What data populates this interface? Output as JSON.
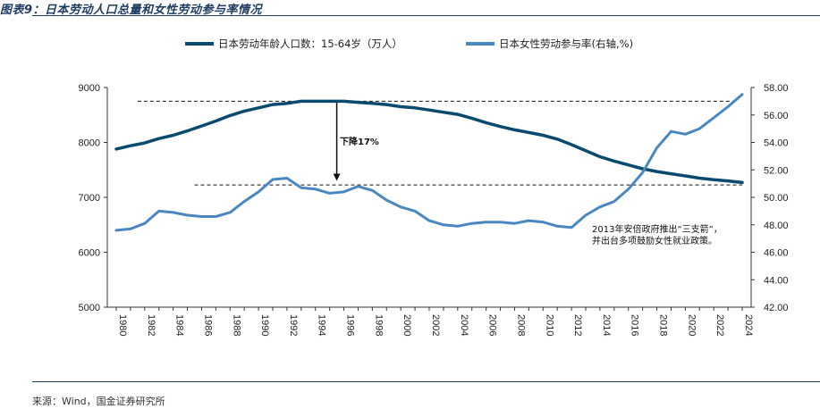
{
  "header": {
    "title": "图表9：日本劳动人口总量和女性劳动参与率情况"
  },
  "footer": {
    "source": "来源：Wind，国金证券研究所"
  },
  "chart_data": {
    "type": "line",
    "x": [
      1980,
      1981,
      1982,
      1983,
      1984,
      1985,
      1986,
      1987,
      1988,
      1989,
      1990,
      1991,
      1992,
      1993,
      1994,
      1995,
      1996,
      1997,
      1998,
      1999,
      2000,
      2001,
      2002,
      2003,
      2004,
      2005,
      2006,
      2007,
      2008,
      2009,
      2010,
      2011,
      2012,
      2013,
      2014,
      2015,
      2016,
      2017,
      2018,
      2019,
      2020,
      2021,
      2022,
      2023,
      2024
    ],
    "xticks": [
      "1980",
      "1982",
      "1984",
      "1986",
      "1988",
      "1990",
      "1992",
      "1994",
      "1996",
      "1998",
      "2000",
      "2002",
      "2004",
      "2006",
      "2008",
      "2010",
      "2012",
      "2014",
      "2016",
      "2018",
      "2020",
      "2022",
      "2024"
    ],
    "series": [
      {
        "name": "日本劳动年龄人口数：15-64岁（万人）",
        "axis": "left",
        "color": "#0b4a6f",
        "values": [
          7880,
          7940,
          7990,
          8070,
          8130,
          8210,
          8300,
          8390,
          8490,
          8570,
          8630,
          8690,
          8710,
          8750,
          8750,
          8750,
          8750,
          8730,
          8710,
          8690,
          8650,
          8630,
          8590,
          8550,
          8510,
          8440,
          8360,
          8290,
          8230,
          8180,
          8130,
          8060,
          7960,
          7850,
          7740,
          7660,
          7590,
          7520,
          7470,
          7430,
          7390,
          7350,
          7320,
          7300,
          7270
        ]
      },
      {
        "name": "日本女性劳动参与率(右轴,%)",
        "axis": "right",
        "color": "#4a87c0",
        "values": [
          47.6,
          47.7,
          48.1,
          49.0,
          48.9,
          48.7,
          48.6,
          48.6,
          48.9,
          49.7,
          50.4,
          51.3,
          51.4,
          50.7,
          50.6,
          50.3,
          50.4,
          50.8,
          50.5,
          49.8,
          49.3,
          49.0,
          48.3,
          48.0,
          47.9,
          48.1,
          48.2,
          48.2,
          48.1,
          48.3,
          48.2,
          47.9,
          47.8,
          48.7,
          49.3,
          49.7,
          50.6,
          51.8,
          53.6,
          54.8,
          54.6,
          55.0,
          55.8,
          56.6,
          57.5
        ]
      }
    ],
    "y_left": {
      "ticks": [
        "5000",
        "6000",
        "7000",
        "8000",
        "9000"
      ],
      "min": 5000,
      "max": 9000
    },
    "y_right": {
      "ticks": [
        "42.00",
        "44.00",
        "46.00",
        "48.00",
        "50.00",
        "52.00",
        "54.00",
        "56.00",
        "58.00"
      ],
      "min": 42,
      "max": 58
    },
    "reference_lines": [
      {
        "axis": "left",
        "value": 8750,
        "x_from": 1981.5,
        "x_to": 2023.5
      },
      {
        "axis": "right",
        "value": 50.9,
        "x_from": 1985.5,
        "x_to": 2024
      }
    ],
    "arrow": {
      "x": 1995.5,
      "from": 8750,
      "to": 7300
    },
    "annotations": {
      "decline": "下降17%",
      "policy_line1": "2013年安倍政府推出“三支箭”，",
      "policy_line2": "并出台多项鼓励女性就业政策。"
    },
    "legend_position": "top-center",
    "grid": false
  }
}
